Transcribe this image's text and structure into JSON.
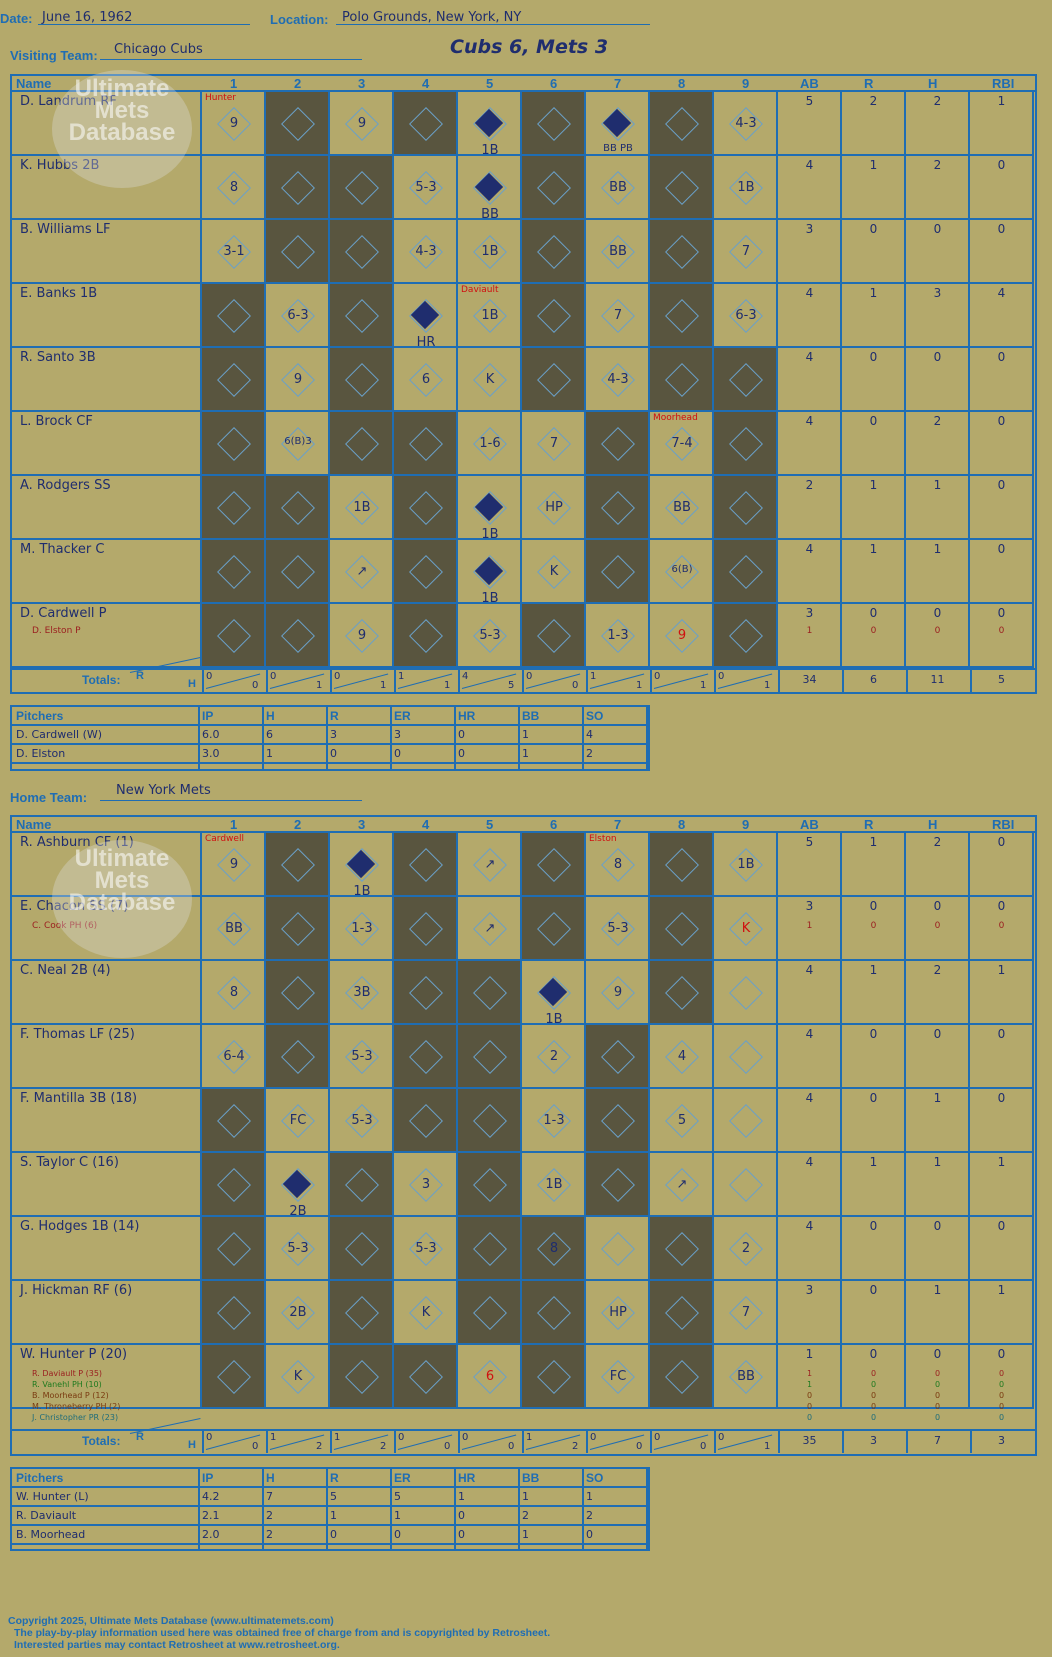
{
  "header": {
    "date_label": "Date:",
    "date": "June 16, 1962",
    "location_label": "Location:",
    "location": "Polo Grounds, New York, NY",
    "visiting_label": "Visiting Team:",
    "visiting_team": "Chicago Cubs",
    "result": "Cubs 6, Mets 3",
    "home_label": "Home Team:",
    "home_team": "New York Mets"
  },
  "logo": {
    "text": "Ultimate Mets Database",
    "url": "ultimatemets.com"
  },
  "columns": {
    "name": "Name",
    "innings": [
      "1",
      "2",
      "3",
      "4",
      "5",
      "6",
      "7",
      "8",
      "9"
    ],
    "stats": [
      "AB",
      "R",
      "H",
      "RBI"
    ],
    "totals_label": "Totals:",
    "r_label": "R",
    "h_label": "H"
  },
  "visitors": {
    "batters": [
      {
        "name": "D. Landrum RF",
        "ab": "5",
        "r": "2",
        "h": "2",
        "rbi": "1"
      },
      {
        "name": "K. Hubbs 2B",
        "ab": "4",
        "r": "1",
        "h": "2",
        "rbi": "0"
      },
      {
        "name": "B. Williams LF",
        "ab": "3",
        "r": "0",
        "h": "0",
        "rbi": "0"
      },
      {
        "name": "E. Banks 1B",
        "ab": "4",
        "r": "1",
        "h": "3",
        "rbi": "4"
      },
      {
        "name": "R. Santo 3B",
        "ab": "4",
        "r": "0",
        "h": "0",
        "rbi": "0"
      },
      {
        "name": "L. Brock CF",
        "ab": "4",
        "r": "0",
        "h": "2",
        "rbi": "0"
      },
      {
        "name": "A. Rodgers SS",
        "ab": "2",
        "r": "1",
        "h": "1",
        "rbi": "0"
      },
      {
        "name": "M. Thacker C",
        "ab": "4",
        "r": "1",
        "h": "1",
        "rbi": "0"
      },
      {
        "name": "D. Cardwell P",
        "ab": "3",
        "r": "0",
        "h": "0",
        "rbi": "0"
      }
    ],
    "subs": [
      {
        "name": "D. Elston P",
        "ab": "1",
        "r": "0",
        "h": "0",
        "rbi": "0"
      }
    ],
    "inning_totals": [
      [
        "0",
        "0"
      ],
      [
        "0",
        "1"
      ],
      [
        "0",
        "1"
      ],
      [
        "1",
        "1"
      ],
      [
        "4",
        "5"
      ],
      [
        "0",
        "0"
      ],
      [
        "1",
        "1"
      ],
      [
        "0",
        "1"
      ],
      [
        "0",
        "1"
      ]
    ],
    "totals": {
      "ab": "34",
      "r": "6",
      "h": "11",
      "rbi": "5"
    },
    "pitchers_header": [
      "Pitchers",
      "IP",
      "H",
      "R",
      "ER",
      "HR",
      "BB",
      "SO"
    ],
    "pitchers": [
      [
        "D. Cardwell (W)",
        "6.0",
        "6",
        "3",
        "3",
        "0",
        "1",
        "4"
      ],
      [
        "D. Elston",
        "3.0",
        "1",
        "0",
        "0",
        "0",
        "1",
        "2"
      ]
    ]
  },
  "home": {
    "batters": [
      {
        "name": "R. Ashburn CF (1)",
        "ab": "5",
        "r": "1",
        "h": "2",
        "rbi": "0"
      },
      {
        "name": "E. Chacon SS (7)",
        "ab": "3",
        "r": "0",
        "h": "0",
        "rbi": "0"
      },
      {
        "name": "C. Neal 2B (4)",
        "ab": "4",
        "r": "1",
        "h": "2",
        "rbi": "1"
      },
      {
        "name": "F. Thomas LF (25)",
        "ab": "4",
        "r": "0",
        "h": "0",
        "rbi": "0"
      },
      {
        "name": "F. Mantilla 3B (18)",
        "ab": "4",
        "r": "0",
        "h": "1",
        "rbi": "0"
      },
      {
        "name": "S. Taylor C (16)",
        "ab": "4",
        "r": "1",
        "h": "1",
        "rbi": "1"
      },
      {
        "name": "G. Hodges 1B (14)",
        "ab": "4",
        "r": "0",
        "h": "0",
        "rbi": "0"
      },
      {
        "name": "J. Hickman RF (6)",
        "ab": "3",
        "r": "0",
        "h": "1",
        "rbi": "1"
      },
      {
        "name": "W. Hunter P (20)",
        "ab": "1",
        "r": "0",
        "h": "0",
        "rbi": "0"
      }
    ],
    "chacon_sub": {
      "name": "C. Cook PH (6)",
      "ab": "1",
      "r": "0",
      "h": "0",
      "rbi": "0"
    },
    "hunter_subs": [
      {
        "name": "R. Daviault P (35)",
        "ab": "1",
        "r": "0",
        "h": "0",
        "rbi": "0",
        "color": "#9b2020"
      },
      {
        "name": "R. Vanehl PH (10)",
        "ab": "1",
        "r": "0",
        "h": "0",
        "rbi": "0",
        "color": "#1f7a1f"
      },
      {
        "name": "B. Moorhead P (12)",
        "ab": "0",
        "r": "0",
        "h": "0",
        "rbi": "0",
        "color": "#7a3b10"
      },
      {
        "name": "M. Throneberry PH (2)",
        "ab": "0",
        "r": "0",
        "h": "0",
        "rbi": "0",
        "color": "#7a3b10"
      },
      {
        "name": "J. Christopher PR (23)",
        "ab": "0",
        "r": "0",
        "h": "0",
        "rbi": "0",
        "color": "#1f6d7a"
      }
    ],
    "inning_totals": [
      [
        "0",
        "0"
      ],
      [
        "1",
        "2"
      ],
      [
        "1",
        "2"
      ],
      [
        "0",
        "0"
      ],
      [
        "0",
        "0"
      ],
      [
        "1",
        "2"
      ],
      [
        "0",
        "0"
      ],
      [
        "0",
        "0"
      ],
      [
        "0",
        "1"
      ]
    ],
    "totals": {
      "ab": "35",
      "r": "3",
      "h": "7",
      "rbi": "3"
    },
    "pitchers_header": [
      "Pitchers",
      "IP",
      "H",
      "R",
      "ER",
      "HR",
      "BB",
      "SO"
    ],
    "pitchers": [
      [
        "W. Hunter (L)",
        "4.2",
        "7",
        "5",
        "5",
        "1",
        "1",
        "1"
      ],
      [
        "R. Daviault",
        "2.1",
        "2",
        "1",
        "1",
        "0",
        "2",
        "2"
      ],
      [
        "B. Moorhead",
        "2.0",
        "2",
        "0",
        "0",
        "0",
        "1",
        "0"
      ]
    ]
  },
  "footer": {
    "line1": "Copyright 2025, Ultimate Mets Database (www.ultimatemets.com)",
    "line2": "The play-by-play information used here was obtained free of charge from and is copyrighted by Retrosheet.",
    "line3": "Interested parties may contact Retrosheet at www.retrosheet.org."
  },
  "visitor_marks": [
    {
      "r": 0,
      "c": 0,
      "t": "Hunter",
      "red": true,
      "pos": "tl"
    },
    {
      "r": 0,
      "c": 0,
      "t": "9"
    },
    {
      "r": 0,
      "c": 2,
      "t": "9"
    },
    {
      "r": 0,
      "c": 4,
      "t": "1B",
      "scored": true
    },
    {
      "r": 0,
      "c": 6,
      "t": "BB PB",
      "scored": true
    },
    {
      "r": 0,
      "c": 8,
      "t": "4-3"
    },
    {
      "r": 1,
      "c": 0,
      "t": "8"
    },
    {
      "r": 1,
      "c": 3,
      "t": "5-3"
    },
    {
      "r": 1,
      "c": 4,
      "t": "BB",
      "scored": true
    },
    {
      "r": 1,
      "c": 6,
      "t": "BB"
    },
    {
      "r": 1,
      "c": 8,
      "t": "1B"
    },
    {
      "r": 2,
      "c": 0,
      "t": "3-1"
    },
    {
      "r": 2,
      "c": 3,
      "t": "4-3"
    },
    {
      "r": 2,
      "c": 4,
      "t": "1B"
    },
    {
      "r": 2,
      "c": 6,
      "t": "BB"
    },
    {
      "r": 2,
      "c": 8,
      "t": "7"
    },
    {
      "r": 3,
      "c": 1,
      "t": "6-3"
    },
    {
      "r": 3,
      "c": 3,
      "t": "HR",
      "scored": true
    },
    {
      "r": 3,
      "c": 4,
      "t": "Daviault",
      "red": true,
      "pos": "tl"
    },
    {
      "r": 3,
      "c": 4,
      "t": "1B"
    },
    {
      "r": 3,
      "c": 6,
      "t": "7"
    },
    {
      "r": 3,
      "c": 8,
      "t": "6-3"
    },
    {
      "r": 4,
      "c": 1,
      "t": "9"
    },
    {
      "r": 4,
      "c": 3,
      "t": "6"
    },
    {
      "r": 4,
      "c": 4,
      "t": "K"
    },
    {
      "r": 4,
      "c": 6,
      "t": "4-3"
    },
    {
      "r": 5,
      "c": 1,
      "t": "6(B)3"
    },
    {
      "r": 5,
      "c": 4,
      "t": "1-6"
    },
    {
      "r": 5,
      "c": 5,
      "t": "7"
    },
    {
      "r": 5,
      "c": 7,
      "t": "Moorhead",
      "red": true,
      "pos": "tl"
    },
    {
      "r": 5,
      "c": 7,
      "t": "7-4"
    },
    {
      "r": 6,
      "c": 2,
      "t": "1B"
    },
    {
      "r": 6,
      "c": 4,
      "t": "1B",
      "scored": true
    },
    {
      "r": 6,
      "c": 5,
      "t": "HP"
    },
    {
      "r": 6,
      "c": 7,
      "t": "BB"
    },
    {
      "r": 7,
      "c": 2,
      "t": "↗"
    },
    {
      "r": 7,
      "c": 4,
      "t": "1B",
      "scored": true
    },
    {
      "r": 7,
      "c": 5,
      "t": "K"
    },
    {
      "r": 7,
      "c": 7,
      "t": "6(B)"
    },
    {
      "r": 8,
      "c": 2,
      "t": "9"
    },
    {
      "r": 8,
      "c": 4,
      "t": "5-3"
    },
    {
      "r": 8,
      "c": 6,
      "t": "1-3"
    },
    {
      "r": 8,
      "c": 7,
      "t": "9",
      "red": true
    }
  ],
  "home_marks": [
    {
      "r": 0,
      "c": 0,
      "t": "Cardwell",
      "red": true,
      "pos": "tl"
    },
    {
      "r": 0,
      "c": 0,
      "t": "9"
    },
    {
      "r": 0,
      "c": 2,
      "t": "1B",
      "scored": true
    },
    {
      "r": 0,
      "c": 4,
      "t": "↗"
    },
    {
      "r": 0,
      "c": 6,
      "t": "Elston",
      "red": true,
      "pos": "tl"
    },
    {
      "r": 0,
      "c": 6,
      "t": "8"
    },
    {
      "r": 0,
      "c": 8,
      "t": "1B"
    },
    {
      "r": 1,
      "c": 0,
      "t": "BB"
    },
    {
      "r": 1,
      "c": 2,
      "t": "1-3"
    },
    {
      "r": 1,
      "c": 4,
      "t": "↗"
    },
    {
      "r": 1,
      "c": 6,
      "t": "5-3"
    },
    {
      "r": 1,
      "c": 8,
      "t": "K",
      "red": true
    },
    {
      "r": 2,
      "c": 0,
      "t": "8"
    },
    {
      "r": 2,
      "c": 2,
      "t": "3B"
    },
    {
      "r": 2,
      "c": 5,
      "t": "1B",
      "scored": true
    },
    {
      "r": 2,
      "c": 6,
      "t": "9"
    },
    {
      "r": 3,
      "c": 0,
      "t": "6-4"
    },
    {
      "r": 3,
      "c": 2,
      "t": "5-3"
    },
    {
      "r": 3,
      "c": 5,
      "t": "2"
    },
    {
      "r": 3,
      "c": 7,
      "t": "4"
    },
    {
      "r": 4,
      "c": 1,
      "t": "FC"
    },
    {
      "r": 4,
      "c": 2,
      "t": "5-3"
    },
    {
      "r": 4,
      "c": 5,
      "t": "1-3"
    },
    {
      "r": 4,
      "c": 7,
      "t": "5"
    },
    {
      "r": 5,
      "c": 1,
      "t": "2B",
      "scored": true
    },
    {
      "r": 5,
      "c": 3,
      "t": "3"
    },
    {
      "r": 5,
      "c": 5,
      "t": "1B"
    },
    {
      "r": 5,
      "c": 7,
      "t": "↗"
    },
    {
      "r": 6,
      "c": 1,
      "t": "5-3"
    },
    {
      "r": 6,
      "c": 3,
      "t": "5-3"
    },
    {
      "r": 6,
      "c": 5,
      "t": "8"
    },
    {
      "r": 6,
      "c": 8,
      "t": "2"
    },
    {
      "r": 7,
      "c": 1,
      "t": "2B"
    },
    {
      "r": 7,
      "c": 3,
      "t": "K"
    },
    {
      "r": 7,
      "c": 6,
      "t": "HP"
    },
    {
      "r": 7,
      "c": 8,
      "t": "7"
    },
    {
      "r": 8,
      "c": 1,
      "t": "K"
    },
    {
      "r": 8,
      "c": 4,
      "t": "6",
      "red": true
    },
    {
      "r": 8,
      "c": 6,
      "t": "FC"
    },
    {
      "r": 8,
      "c": 8,
      "t": "BB"
    }
  ]
}
